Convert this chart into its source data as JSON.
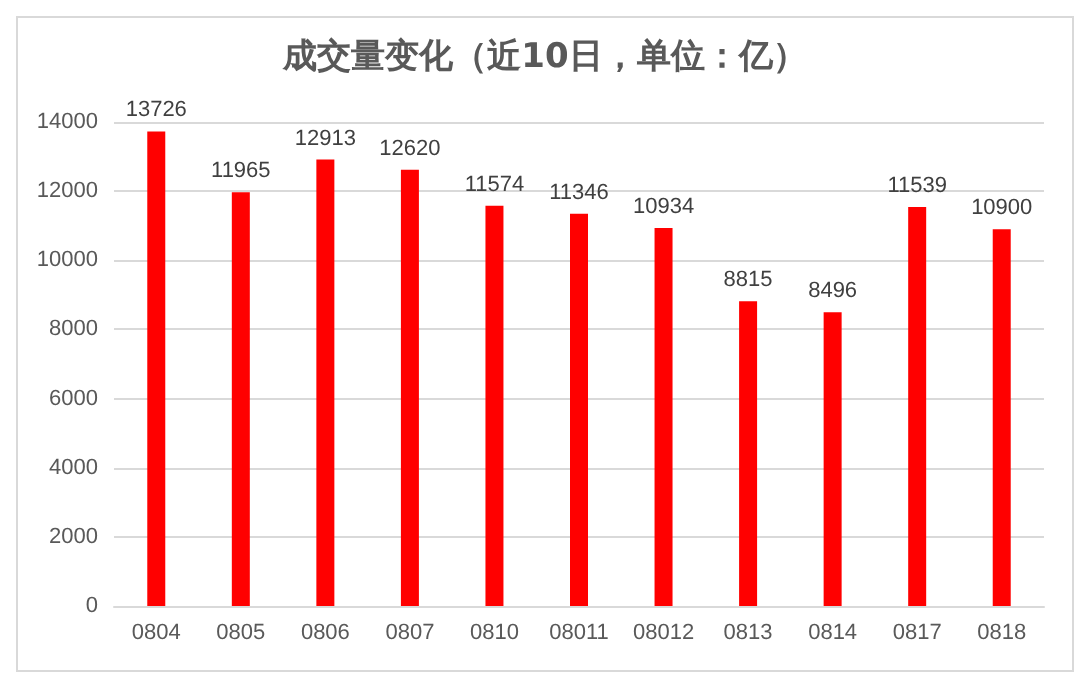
{
  "chart_data": {
    "type": "bar",
    "title": "成交量变化（近10日，单位：亿）",
    "categories": [
      "0804",
      "0805",
      "0806",
      "0807",
      "0810",
      "08011",
      "08012",
      "0813",
      "0814",
      "0817",
      "0818"
    ],
    "values": [
      13726,
      11965,
      12913,
      12620,
      11574,
      11346,
      10934,
      8815,
      8496,
      11539,
      10900
    ],
    "color": "#ff0000",
    "ylim": [
      0,
      14000
    ],
    "yticks": [
      0,
      2000,
      4000,
      6000,
      8000,
      10000,
      12000,
      14000
    ],
    "grid": "y",
    "data_labels": true
  }
}
